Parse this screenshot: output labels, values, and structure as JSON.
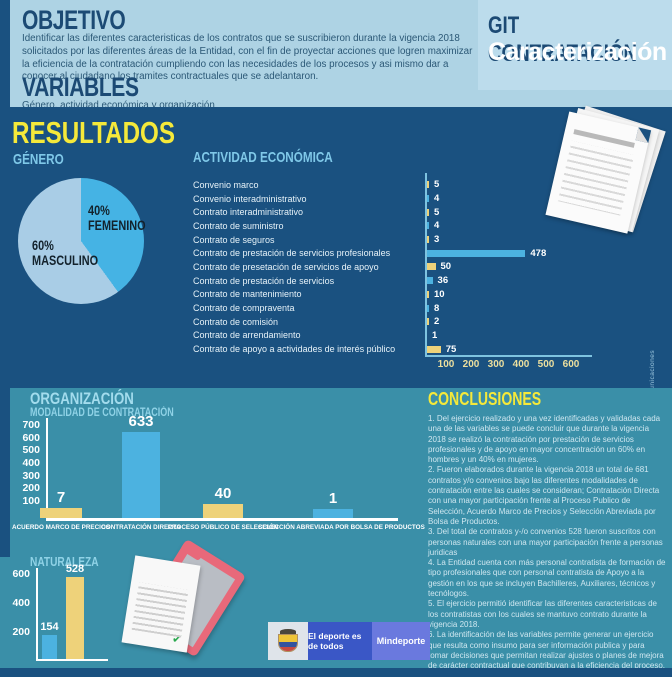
{
  "page": {
    "bg_dark": "#1a5180",
    "bg_light": "#aed3e4",
    "bg_teal": "#3a8fa8",
    "accent_yellow": "#f5e93a"
  },
  "header": {
    "title": "GIT CONTRATACIÓN",
    "subtitle": "Caracterización"
  },
  "objetivo": {
    "heading": "OBJETIVO",
    "body": "Identificar las diferentes caracteristicas de los contratos que se suscribieron durante la vigencia 2018 solicitados por las diferentes áreas de la Entidad, con el fin de proyectar acciones que logren maximizar la eficiencia de la contratación cumpliendo con las necesidades de los procesos y asi mismo dar a conocer al ciudadano los tramites contractuales que se adelantaron."
  },
  "variables": {
    "heading": "VARIABLES",
    "body": "Género, actividad económica y organización"
  },
  "resultados_heading": "RESULTADOS",
  "credit": "Diseño GIT Comunicaciones",
  "chart_data": [
    {
      "type": "pie",
      "title": "GÉNERO",
      "slices": [
        {
          "label": "FEMENINO",
          "value": 40,
          "text": "40%",
          "color": "#45b3e4"
        },
        {
          "label": "MASCULINO",
          "value": 60,
          "text": "60%",
          "color": "#a9cde6"
        }
      ]
    },
    {
      "type": "bar",
      "orientation": "horizontal",
      "title": "ACTIVIDAD ECONÓMICA",
      "categories": [
        "Convenio marco",
        "Convenio interadministrativo",
        "Contrato interadministrativo",
        "Contrato de suministro",
        "Contrato de seguros",
        "Contrato de prestación de servicios profesionales",
        "Contrato de presetación de servicios de apoyo",
        "Contrato de prestación de servicios",
        "Contrato de mantenimiento",
        "Contrato de compraventa",
        "Contrato de comisión",
        "Contrato de arrendamiento",
        "Contrato de apoyo a actividades de interés público"
      ],
      "values": [
        5,
        4,
        5,
        4,
        3,
        478,
        50,
        36,
        10,
        8,
        2,
        1,
        75
      ],
      "xticks": [
        100,
        200,
        300,
        400,
        500,
        600
      ],
      "xlim": [
        0,
        600
      ],
      "bar_colors": [
        "#eed27a",
        "#4cb2e0"
      ]
    },
    {
      "type": "bar",
      "section_heading": "ORGANIZACIÓN",
      "title": "MODALIDAD DE CONTRATACIÓN",
      "categories": [
        "ACUERDO MARCO DE PRECIOS",
        "CONTRATACIÓN DIRECTA",
        "PROCESO PÚBLICO DE SELECCIÓN",
        "SELECCIÓN ABREVIADA POR BOLSA DE PRODUCTOS"
      ],
      "values": [
        7,
        633,
        40,
        1
      ],
      "yticks": [
        100,
        200,
        300,
        400,
        500,
        600,
        700
      ],
      "ylim": [
        0,
        700
      ],
      "bar_colors": [
        "#eed27a",
        "#4cb2e0"
      ]
    },
    {
      "type": "bar",
      "title": "NATURALEZA",
      "categories": [
        "",
        ""
      ],
      "values": [
        154,
        528
      ],
      "yticks": [
        200,
        400,
        600
      ],
      "ylim": [
        0,
        600
      ],
      "bar_colors": [
        "#4cb2e0",
        "#eed27a"
      ]
    }
  ],
  "conclusiones": {
    "heading": "CONCLUSIONES",
    "items": [
      "1. Del ejercicio realizado y una vez identificadas y validadas cada una de las variables se puede concluir que durante la vigencia 2018 se realizó la contratación por prestación de servicios profesionales y de apoyo en mayor concentración un 60% en hombres y un 40% en mujeres.",
      "2. Fueron elaborados durante la vigencia 2018 un total de 681 contratos y/o convenios bajo las diferentes modalidades de contratación entre las cuales se consideran; Contratación Directa con una mayor participación frente al Proceso Publico de Selección, Acuerdo Marco de Precios y Selección Abreviada por Bolsa de Productos.",
      "3. Del total de contratos y-/o convenios 528 fueron suscritos con personas naturales con una mayor participación frente a personas juridicas",
      "4. La Entidad cuenta con más personal contratista de formación de tipo profesionales que con personal contratista de Apoyo a la gestión en los que se incluyen Bachilleres, Auxiliares, técnicos y tecnólogos.",
      "5. El ejercicio permitió identificar las diferentes caracteristicas de los contratistas con los cuales se mantuvo contrato durante la vigencia 2018.",
      "6. La identificación de las variables permite generar un ejercicio que resulta como insumo para ser información publica y para tomar decisiones que permitan realizar ajustes o planes de mejora de carácter contractual que contribuyan a la eficiencia del proceso."
    ]
  },
  "footer": {
    "logos": [
      {
        "name": "colombia-crest"
      },
      {
        "label": "El deporte es de todos",
        "color": "#3a57c6"
      },
      {
        "label": "Mindeporte",
        "color": "#6a79de"
      }
    ]
  }
}
